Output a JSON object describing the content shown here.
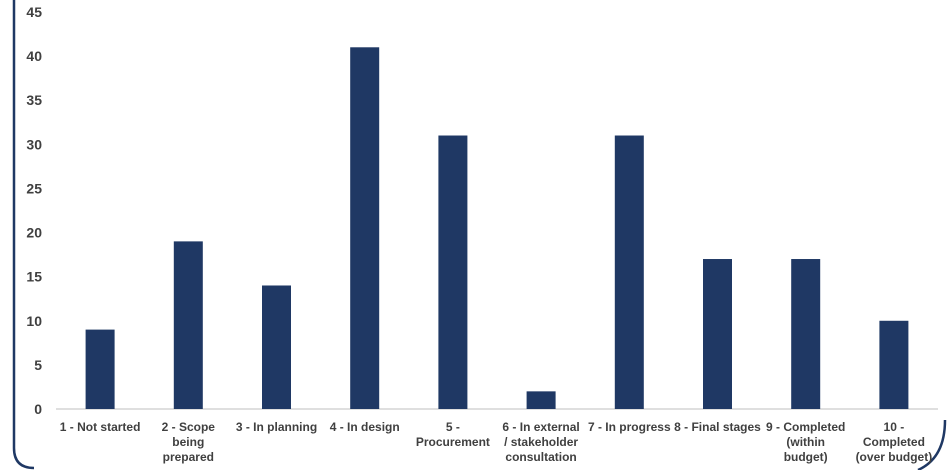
{
  "chart_data": {
    "type": "bar",
    "title": "",
    "xlabel": "",
    "ylabel": "",
    "categories": [
      "1 - Not started",
      "2 - Scope being prepared",
      "3 - In planning",
      "4 - In design",
      "5 - Procurement",
      "6 - In external / stakeholder consultation",
      "7 - In progress",
      "8 - Final stages",
      "9 - Completed (within budget)",
      "10 - Completed (over budget)"
    ],
    "category_lines": [
      [
        "1 - Not started"
      ],
      [
        "2 - Scope",
        "being",
        "prepared"
      ],
      [
        "3 - In planning"
      ],
      [
        "4 - In design"
      ],
      [
        "5 -",
        "Procurement"
      ],
      [
        "6 - In external",
        "/ stakeholder",
        "consultation"
      ],
      [
        "7 - In progress"
      ],
      [
        "8 - Final stages"
      ],
      [
        "9 - Completed",
        "(within",
        "budget)"
      ],
      [
        "10 -",
        "Completed",
        "(over budget)"
      ]
    ],
    "values": [
      9,
      19,
      14,
      41,
      31,
      2,
      31,
      17,
      17,
      10
    ],
    "ylim": [
      0,
      45
    ],
    "yticks": [
      0,
      5,
      10,
      15,
      20,
      25,
      30,
      35,
      40,
      45
    ],
    "grid": false,
    "legend": false,
    "colors": {
      "bar": "#1F3864",
      "axis": "#BFBFBF",
      "frame": "#1F3864",
      "text": "#404040"
    }
  }
}
